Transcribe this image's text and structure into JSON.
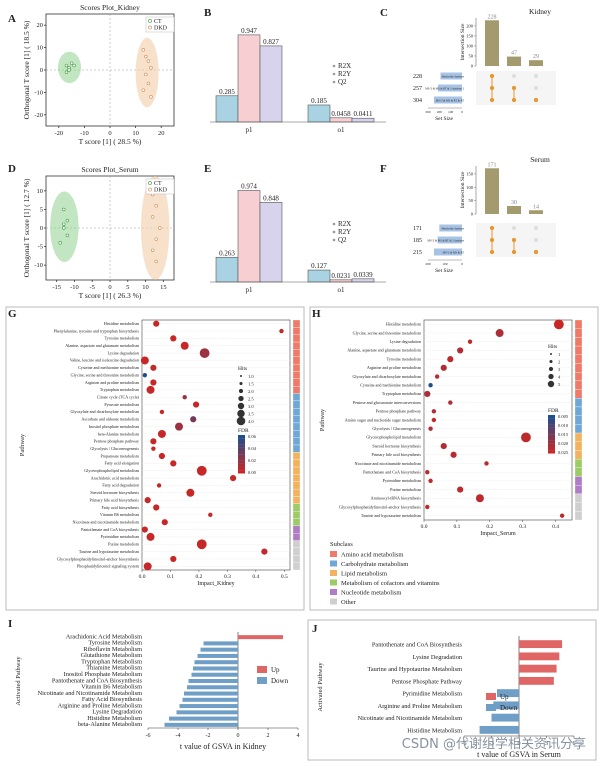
{
  "watermark": "CSDN @代谢组学相关资讯分享",
  "colors": {
    "ct": "#8fd08f",
    "dkd": "#f3c8a0",
    "r2x": "#a9d3e2",
    "r2y": "#f7cfd2",
    "q2": "#d7d3ec",
    "dark_bar": "#a39a6e",
    "set_bar": "#a7c3e4",
    "dot_on": "#e8962f",
    "dot_off": "#dddddd",
    "up": "#e06666",
    "down": "#6f9ec7",
    "fdr_hi": "#c62828",
    "fdr_lo": "#1f4e8c"
  },
  "chart_data": [
    {
      "panel": "A",
      "type": "scatter",
      "title": "Scores Plot_Kidney",
      "xlabel": "T score [1] ( 28.5 %)",
      "ylabel": "Orthogonal T score [1] ( 18.5 %)",
      "xticks": [
        "-20",
        "-10",
        "0",
        "10",
        "20"
      ],
      "yticks": [
        "-20",
        "-10",
        "0",
        "10",
        "20"
      ],
      "xlim": [
        -25,
        25
      ],
      "ylim": [
        -25,
        25
      ],
      "legend": [
        "CT",
        "DKD"
      ],
      "series": [
        {
          "name": "CT",
          "x": [
            -17,
            -16,
            -15,
            -17,
            -14,
            -16
          ],
          "y": [
            2,
            1,
            3,
            -1,
            2,
            0
          ]
        },
        {
          "name": "DKD",
          "x": [
            13,
            14,
            15,
            16,
            14,
            15,
            13,
            16
          ],
          "y": [
            9,
            6,
            4,
            1,
            -2,
            -6,
            -9,
            -12
          ]
        }
      ]
    },
    {
      "panel": "B",
      "type": "bar",
      "categories": [
        "p1",
        "o1"
      ],
      "legend": [
        "R2X",
        "R2Y",
        "Q2"
      ],
      "ylim": [
        0,
        1
      ],
      "series": [
        {
          "name": "R2X",
          "values": [
            0.285,
            0.185
          ]
        },
        {
          "name": "R2Y",
          "values": [
            0.947,
            0.0458
          ]
        },
        {
          "name": "Q2",
          "values": [
            0.827,
            0.0411
          ]
        }
      ],
      "labels": [
        [
          "0.285",
          "0.947",
          "0.827"
        ],
        [
          "0.185",
          "0.0458",
          "0.0411"
        ]
      ]
    },
    {
      "panel": "C",
      "type": "bar",
      "title": "Kidney",
      "ylabel": "Intersection Size",
      "xlabel": "Set Size",
      "intersections": [
        228,
        47,
        29
      ],
      "set_sizes": [
        228,
        257,
        304
      ],
      "set_labels": [
        "Metabolite database",
        "MS^2 & MS & RT & 2 database 2",
        "MS^2 & MS & RT & RT"
      ],
      "yticks": [
        "0",
        "50",
        "100",
        "150",
        "200"
      ],
      "xticks": [
        "300",
        "200",
        "100",
        "0"
      ]
    },
    {
      "panel": "D",
      "type": "scatter",
      "title": "Scores Plot_Serum",
      "xlabel": "T score [1] ( 26.3 %)",
      "ylabel": "Orthogonal T score [1] ( 12.7 %)",
      "xticks": [
        "-15",
        "-10",
        "-5",
        "0",
        "5",
        "10",
        "15"
      ],
      "yticks": [
        "-10",
        "-5",
        "0",
        "5",
        "10"
      ],
      "xlim": [
        -18,
        18
      ],
      "ylim": [
        -14,
        14
      ],
      "legend": [
        "CT",
        "DKD"
      ],
      "series": [
        {
          "name": "CT",
          "x": [
            -13,
            -12,
            -13,
            -12,
            -14,
            -13
          ],
          "y": [
            5,
            2,
            1,
            -2,
            -4,
            0
          ]
        },
        {
          "name": "DKD",
          "x": [
            12,
            13,
            12,
            14,
            13,
            12,
            13
          ],
          "y": [
            9,
            6,
            3,
            0,
            -3,
            -6,
            -9
          ]
        }
      ]
    },
    {
      "panel": "E",
      "type": "bar",
      "categories": [
        "p1",
        "o1"
      ],
      "legend": [
        "R2X",
        "R2Y",
        "Q2"
      ],
      "ylim": [
        0,
        1
      ],
      "series": [
        {
          "name": "R2X",
          "values": [
            0.263,
            0.127
          ]
        },
        {
          "name": "R2Y",
          "values": [
            0.974,
            0.0231
          ]
        },
        {
          "name": "Q2",
          "values": [
            0.848,
            0.0339
          ]
        }
      ],
      "labels": [
        [
          "0.263",
          "0.974",
          "0.848"
        ],
        [
          "0.127",
          "0.0231",
          "0.0339"
        ]
      ]
    },
    {
      "panel": "F",
      "type": "bar",
      "title": "Serum",
      "ylabel": "Intersection Size",
      "xlabel": "Set Size",
      "intersections": [
        171,
        30,
        14
      ],
      "set_sizes": [
        171,
        185,
        215
      ],
      "set_labels": [
        "Metabolite database",
        "MS^2 & MS & RT & 2 database",
        "MS^2 & MS & RT"
      ],
      "yticks": [
        "0",
        "50",
        "100",
        "150"
      ],
      "xticks": [
        "200",
        "100",
        "0"
      ]
    },
    {
      "panel": "G",
      "type": "scatter",
      "xlabel": "Impact_Kidney",
      "ylabel": "Pathway",
      "xticks": [
        "0.0",
        "0.1",
        "0.2",
        "0.3",
        "0.4",
        "0.5"
      ],
      "xlim": [
        0,
        0.52
      ],
      "legend_hits": [
        "1.0",
        "1.5",
        "2.0",
        "2.5",
        "3.0",
        "3.5",
        "4.0"
      ],
      "legend_fdr": [
        "0.06",
        "0.04",
        "0.02",
        "0.00"
      ],
      "pathways": [
        "Histidine metabolism",
        "Phenylalanine, tyrosine and tryptophan biosynthesis",
        "Tyrosine metabolism",
        "Alanine, aspartate and glutamate metabolism",
        "Lysine degradation",
        "Valine, leucine and isoleucine degradation",
        "Cysteine and methionine metabolism",
        "Glycine, serine and threonine metabolism",
        "Arginine and proline metabolism",
        "Tryptophan metabolism",
        "Citrate cycle (TCA cycle)",
        "Pyruvate metabolism",
        "Glyoxylate and dicarboxylate metabolism",
        "Ascorbate and aldarate metabolism",
        "Inositol phosphate metabolism",
        "beta-Alanine metabolism",
        "Pentose phosphate pathway",
        "Glycolysis / Gluconeogenesis",
        "Propanoate metabolism",
        "Fatty acid elongation",
        "Glycerophospholipid metabolism",
        "Arachidonic acid metabolism",
        "Fatty acid degradation",
        "Steroid hormone biosynthesis",
        "Primary bile acid biosynthesis",
        "Fatty acid biosynthesis",
        "Vitamin B6 metabolism",
        "Nicotinate and nicotinamide metabolism",
        "Pantothenate and CoA biosynthesis",
        "Pyrimidine metabolism",
        "Purine metabolism",
        "Taurine and hypotaurine metabolism",
        "Glycosylphosphatidylinositol-anchor biosynthesis",
        "Phosphatidylinositol signaling system"
      ],
      "impact": [
        0.05,
        0.49,
        0.11,
        0.15,
        0.22,
        0.01,
        0.04,
        0.01,
        0.04,
        0.03,
        0.15,
        0.19,
        0.07,
        0.18,
        0.13,
        0.07,
        0.04,
        0.04,
        0.07,
        0.11,
        0.21,
        0.32,
        0.06,
        0.17,
        0.02,
        0.05,
        0.24,
        0.08,
        0.01,
        0.03,
        0.21,
        0.43,
        0.11,
        0.02
      ],
      "hits": [
        2,
        1,
        2,
        3,
        4,
        3,
        2,
        1,
        2,
        3,
        1,
        2,
        1,
        2,
        3,
        3,
        2,
        1,
        2,
        2,
        4,
        2,
        1,
        3,
        2,
        2,
        1,
        2,
        2,
        3,
        4,
        2,
        2,
        3
      ],
      "fdr": [
        0.0,
        0.0,
        0.0,
        0.0,
        0.01,
        0.0,
        0.0,
        0.04,
        0.0,
        0.0,
        0.01,
        0.0,
        0.0,
        0.02,
        0.01,
        0.0,
        0.0,
        0.0,
        0.0,
        0.0,
        0.0,
        0.0,
        0.0,
        0.0,
        0.0,
        0.0,
        0.0,
        0.0,
        0.0,
        0.0,
        0.0,
        0.0,
        0.0,
        0.0
      ]
    },
    {
      "panel": "H",
      "type": "scatter",
      "xlabel": "Impact_Serum",
      "ylabel": "Pathway",
      "xticks": [
        "0.0",
        "0.1",
        "0.2",
        "0.3",
        "0.4"
      ],
      "xlim": [
        0,
        0.45
      ],
      "legend_hits": [
        "1",
        "2",
        "3",
        "4",
        "5"
      ],
      "legend_fdr": [
        "0.005",
        "0.010",
        "0.015",
        "0.020",
        "0.025"
      ],
      "pathways": [
        "Histidine metabolism",
        "Glycine, serine and threonine metabolism",
        "Lysine degradation",
        "Alanine, aspartate and glutamate metabolism",
        "Tyrosine metabolism",
        "Arginine and proline metabolism",
        "Glyoxylate and dicarboxylate metabolism",
        "Cysteine and methionine metabolism",
        "Tryptophan metabolism",
        "Pentose and glucuronate interconversions",
        "Pentose phosphate pathway",
        "Amino sugar and nucleotide sugar metabolism",
        "Glycolysis / Gluconeogenesis",
        "Glycerophospholipid metabolism",
        "Steroid hormone biosynthesis",
        "Primary bile acid biosynthesis",
        "Nicotinate and nicotinamide metabolism",
        "Pantothenate and CoA biosynthesis",
        "Pyrimidine metabolism",
        "Purine metabolism",
        "Aminoacyl-tRNA biosynthesis",
        "Glycosylphosphatidylinositol-anchor biosynthesis",
        "Taurine and hypotaurine metabolism"
      ],
      "impact": [
        0.41,
        0.23,
        0.14,
        0.11,
        0.08,
        0.06,
        0.04,
        0.02,
        0.01,
        0.08,
        0.03,
        0.03,
        0.02,
        0.31,
        0.06,
        0.09,
        0.19,
        0.01,
        0.02,
        0.11,
        0.17,
        0.01,
        0.42
      ],
      "hits": [
        4,
        3,
        1,
        2,
        2,
        2,
        1,
        1,
        2,
        1,
        1,
        1,
        1,
        4,
        2,
        2,
        1,
        1,
        1,
        2,
        3,
        1,
        1
      ],
      "fdr": [
        0.001,
        0.004,
        0.002,
        0.003,
        0.002,
        0.003,
        0.002,
        0.02,
        0.004,
        0.003,
        0.003,
        0.002,
        0.003,
        0.002,
        0.003,
        0.002,
        0.002,
        0.003,
        0.002,
        0.002,
        0.002,
        0.002,
        0.002
      ]
    },
    {
      "panel": "I",
      "type": "bar",
      "orientation": "horizontal",
      "xlabel": "t value of GSVA in Kidney",
      "ylabel": "Activated Pathway",
      "xticks": [
        "-6",
        "-4",
        "-2",
        "0",
        "2",
        "4"
      ],
      "xlim": [
        -6,
        4
      ],
      "legend": [
        "Up",
        "Down"
      ],
      "categories": [
        "Arachidonic Acid Metabolism",
        "Tyrosine Metabolism",
        "Riboflavin Metabolism",
        "Glutathione Metabolism",
        "Tryptophan Metabolism",
        "Thiamine Metabolism",
        "Inositol Phosphate Metabolism",
        "Pantothenate and CoA Biosynthesis",
        "Vitamin B6 Metabolism",
        "Nicotinate and Nicotinamide Metabolism",
        "Fatty Acid Biosynthesis",
        "Arginine and Proline Metabolism",
        "Lysine Degradation",
        "Histidine Metabolism",
        "beta-Alanine Metabolism"
      ],
      "values": [
        3.0,
        -2.3,
        -2.5,
        -2.7,
        -2.9,
        -3.0,
        -3.1,
        -3.3,
        -3.4,
        -3.6,
        -3.7,
        -3.9,
        -4.1,
        -4.6,
        -4.9
      ]
    },
    {
      "panel": "J",
      "type": "bar",
      "orientation": "horizontal",
      "xlabel": "t value of GSVA in Serum",
      "ylabel": "Activated Pathway",
      "xticks": [
        "-6",
        "-3",
        "0",
        "3",
        "6"
      ],
      "xlim": [
        -6,
        6
      ],
      "legend": [
        "Up",
        "Down"
      ],
      "categories": [
        "Pantothenate and CoA Biosynthesis",
        "Lysine Degradation",
        "Taurine and Hypotaurine Metabolism",
        "Pentose Phosphate Pathway",
        "Pyrimidine Metabolism",
        "Arginine and Proline Metabolism",
        "Nicotinate and Nicotinamide Metabolism",
        "Histidine Metabolism"
      ],
      "values": [
        4.7,
        4.4,
        4.1,
        3.8,
        -2.4,
        -2.8,
        -3.0,
        -4.3
      ]
    }
  ],
  "subclass_legend": {
    "title": "Subclass",
    "items": [
      {
        "label": "Amino acid metabolism",
        "color": "#f07a6a"
      },
      {
        "label": "Carbohydrate metabolism",
        "color": "#6fa8d6"
      },
      {
        "label": "Lipid metabolism",
        "color": "#f3b25f"
      },
      {
        "label": "Metabolism of cofactors and vitamins",
        "color": "#9ccc65"
      },
      {
        "label": "Nucleotide metabolism",
        "color": "#b07cc6"
      },
      {
        "label": "Other",
        "color": "#cfcfcf"
      }
    ]
  }
}
